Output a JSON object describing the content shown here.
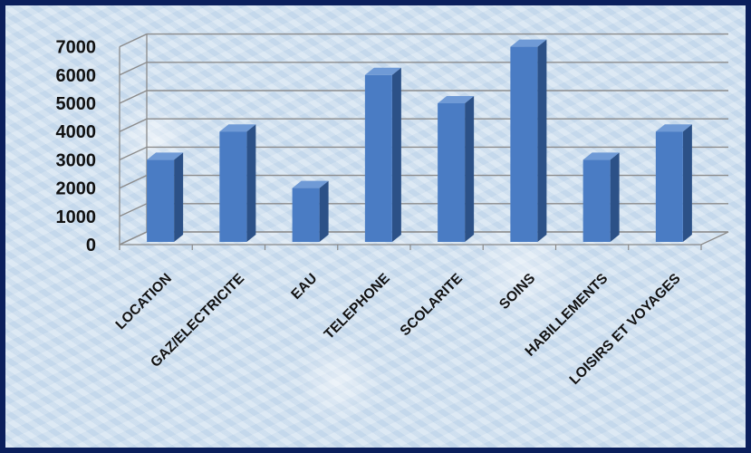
{
  "chart_data": {
    "type": "bar",
    "categories": [
      "LOCATION",
      "GAZ/ELECTRICITE",
      "EAU",
      "TELEPHONE",
      "SCOLARITE",
      "SOINS",
      "HABILLEMENTS",
      "LOISIRS ET VOYAGES"
    ],
    "values": [
      3000,
      4000,
      2000,
      6000,
      5000,
      7000,
      3000,
      4000
    ],
    "yticks": [
      "0",
      "1000",
      "2000",
      "3000",
      "4000",
      "5000",
      "6000",
      "7000"
    ],
    "ylim": [
      0,
      7000
    ],
    "grid": true,
    "bar_colors": {
      "front": "#4a7cc4",
      "side": "#2c5187",
      "top": "#6f9ad6"
    },
    "frame_color": "#0b1f5c"
  }
}
